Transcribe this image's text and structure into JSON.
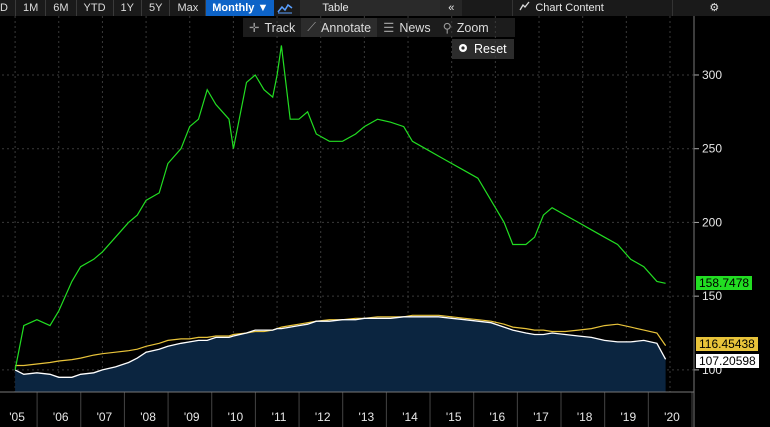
{
  "toolbar": {
    "periods": [
      "D",
      "1M",
      "6M",
      "YTD",
      "1Y",
      "5Y",
      "Max"
    ],
    "frequency": "Monthly ▼",
    "table_label": "Table",
    "collapse": "«",
    "chart_content_label": "Chart Content",
    "gear": "⚙"
  },
  "subtoolbar": {
    "track": "Track",
    "annotate": "Annotate",
    "news": "News",
    "zoom": "Zoom",
    "reset": "Reset"
  },
  "colors": {
    "green": "#22dd22",
    "yellow": "#e8c33a",
    "white": "#ffffff",
    "area": "#0b2540",
    "grid": "#3a3a3a"
  },
  "chart_data": {
    "type": "line",
    "x_tick_labels": [
      "'05",
      "'06",
      "'07",
      "'08",
      "'09",
      "'10",
      "'11",
      "'12",
      "'13",
      "'14",
      "'15",
      "'16",
      "'17",
      "'18",
      "'19",
      "'20"
    ],
    "x": [
      2005.0,
      2005.2,
      2005.5,
      2005.8,
      2006.0,
      2006.3,
      2006.5,
      2006.8,
      2007.0,
      2007.3,
      2007.6,
      2007.8,
      2008.0,
      2008.3,
      2008.5,
      2008.8,
      2009.0,
      2009.2,
      2009.4,
      2009.6,
      2009.9,
      2010.0,
      2010.3,
      2010.5,
      2010.7,
      2010.9,
      2011.0,
      2011.1,
      2011.3,
      2011.5,
      2011.7,
      2011.9,
      2012.2,
      2012.5,
      2012.8,
      2013.0,
      2013.3,
      2013.6,
      2013.9,
      2014.1,
      2014.4,
      2014.7,
      2015.0,
      2015.3,
      2015.6,
      2015.9,
      2016.2,
      2016.4,
      2016.7,
      2016.9,
      2017.1,
      2017.3,
      2017.6,
      2017.9,
      2018.2,
      2018.5,
      2018.8,
      2019.1,
      2019.4,
      2019.7,
      2019.9
    ],
    "series": [
      {
        "name": "Green",
        "values": [
          100,
          130,
          134,
          130,
          140,
          160,
          170,
          175,
          180,
          190,
          200,
          205,
          215,
          220,
          240,
          250,
          265,
          270,
          290,
          280,
          270,
          250,
          295,
          300,
          290,
          285,
          300,
          320,
          270,
          270,
          275,
          260,
          255,
          255,
          260,
          265,
          270,
          268,
          265,
          255,
          250,
          245,
          240,
          235,
          230,
          215,
          200,
          185,
          185,
          190,
          205,
          210,
          205,
          200,
          195,
          190,
          185,
          175,
          170,
          160,
          158.7478
        ]
      },
      {
        "name": "Yellow",
        "values": [
          103,
          103,
          104,
          105,
          106,
          107,
          108,
          110,
          111,
          112,
          113,
          114,
          116,
          118,
          120,
          121,
          121,
          122,
          122,
          123,
          123,
          124,
          125,
          126,
          126,
          127,
          128,
          129,
          130,
          131,
          132,
          133,
          134,
          134,
          135,
          135,
          136,
          136,
          136,
          137,
          137,
          137,
          136,
          135,
          134,
          133,
          131,
          129,
          128,
          127,
          127,
          126,
          126,
          127,
          128,
          130,
          131,
          129,
          127,
          125,
          116.45438
        ]
      },
      {
        "name": "White",
        "values": [
          100,
          97,
          98,
          97,
          95,
          95,
          97,
          98,
          100,
          102,
          105,
          108,
          112,
          114,
          116,
          118,
          119,
          120,
          120,
          122,
          122,
          123,
          125,
          127,
          127,
          127,
          128,
          128,
          129,
          130,
          131,
          133,
          133,
          134,
          134,
          135,
          135,
          135,
          136,
          136,
          136,
          136,
          135,
          134,
          133,
          132,
          129,
          127,
          125,
          124,
          124,
          125,
          124,
          123,
          122,
          120,
          119,
          119,
          120,
          118,
          107.20598
        ]
      }
    ],
    "y_tick_labels": [
      "100",
      "150",
      "200",
      "250",
      "300"
    ],
    "ylim": [
      85,
      340
    ],
    "last_values": [
      "158.7478",
      "116.45438",
      "107.20598"
    ]
  }
}
